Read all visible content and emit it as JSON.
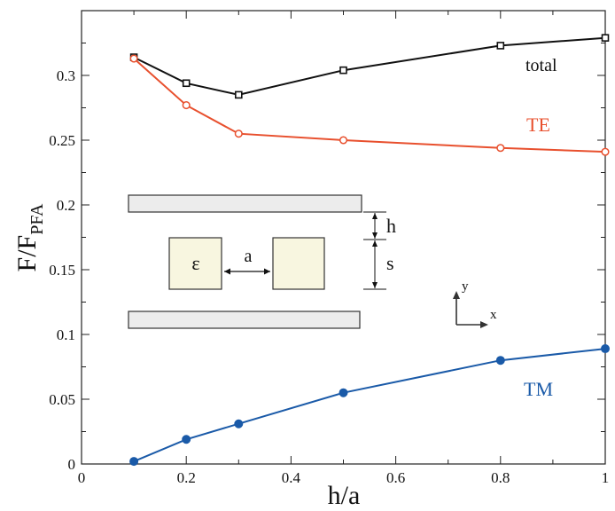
{
  "chart_data": {
    "type": "line",
    "xlabel": "h/a",
    "ylabel_main": "F/F",
    "ylabel_sub": "PFA",
    "xlim": [
      0,
      1
    ],
    "ylim": [
      0,
      0.35
    ],
    "xticks": [
      0,
      0.2,
      0.4,
      0.6,
      0.8,
      1
    ],
    "xtick_labels": [
      "0",
      "0.2",
      "0.4",
      "0.6",
      "0.8",
      "1"
    ],
    "yticks": [
      0,
      0.05,
      0.1,
      0.15,
      0.2,
      0.25,
      0.3
    ],
    "ytick_labels": [
      "0",
      "0.05",
      "0.1",
      "0.15",
      "0.2",
      "0.25",
      "0.3"
    ],
    "grid": false,
    "series": [
      {
        "name": "total",
        "color": "#111111",
        "marker": "square",
        "x": [
          0.1,
          0.2,
          0.3,
          0.5,
          0.8,
          1.0
        ],
        "y": [
          0.314,
          0.294,
          0.285,
          0.304,
          0.323,
          0.329
        ]
      },
      {
        "name": "TE",
        "color": "#e8502e",
        "marker": "open-circle",
        "x": [
          0.1,
          0.2,
          0.3,
          0.5,
          0.8,
          1.0
        ],
        "y": [
          0.313,
          0.277,
          0.255,
          0.25,
          0.244,
          0.241
        ]
      },
      {
        "name": "TM",
        "color": "#1a5aa8",
        "marker": "filled-circle",
        "x": [
          0.1,
          0.2,
          0.3,
          0.5,
          0.8,
          1.0
        ],
        "y": [
          0.002,
          0.019,
          0.031,
          0.055,
          0.08,
          0.089
        ]
      }
    ],
    "inset": {
      "epsilon_label": "ε",
      "a_label": "a",
      "h_label": "h",
      "s_label": "s",
      "x_axis_label": "x",
      "y_axis_label": "y"
    }
  }
}
